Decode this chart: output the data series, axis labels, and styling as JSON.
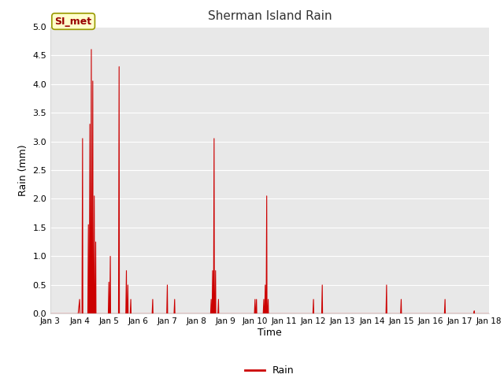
{
  "title": "Sherman Island Rain",
  "xlabel": "Time",
  "ylabel": "Rain (mm)",
  "legend_label": "Rain",
  "line_color": "#cc0000",
  "ylim": [
    0,
    5.0
  ],
  "yticks": [
    0.0,
    0.5,
    1.0,
    1.5,
    2.0,
    2.5,
    3.0,
    3.5,
    4.0,
    4.5,
    5.0
  ],
  "fig_bg_color": "#ffffff",
  "plot_bg_color": "#e8e8e8",
  "annotation_text": "SI_met",
  "annotation_bg": "#ffffcc",
  "annotation_border": "#999900",
  "annotation_text_color": "#990000",
  "start_day": 3,
  "end_day": 18,
  "data_points": [
    [
      3.0,
      0.0
    ],
    [
      3.95,
      0.0
    ],
    [
      4.0,
      0.25
    ],
    [
      4.01,
      0.0
    ],
    [
      4.08,
      0.0
    ],
    [
      4.1,
      3.05
    ],
    [
      4.11,
      0.0
    ],
    [
      4.28,
      0.0
    ],
    [
      4.3,
      1.55
    ],
    [
      4.31,
      0.0
    ],
    [
      4.33,
      0.0
    ],
    [
      4.35,
      3.3
    ],
    [
      4.36,
      0.0
    ],
    [
      4.38,
      0.0
    ],
    [
      4.4,
      4.6
    ],
    [
      4.41,
      0.0
    ],
    [
      4.43,
      0.0
    ],
    [
      4.45,
      4.05
    ],
    [
      4.46,
      0.0
    ],
    [
      4.48,
      0.0
    ],
    [
      4.5,
      2.05
    ],
    [
      4.51,
      0.0
    ],
    [
      4.53,
      0.0
    ],
    [
      4.55,
      1.25
    ],
    [
      4.56,
      0.0
    ],
    [
      4.75,
      0.0
    ],
    [
      4.98,
      0.0
    ],
    [
      5.0,
      0.55
    ],
    [
      5.01,
      0.0
    ],
    [
      5.03,
      0.0
    ],
    [
      5.05,
      1.0
    ],
    [
      5.06,
      0.0
    ],
    [
      5.33,
      0.0
    ],
    [
      5.35,
      4.3
    ],
    [
      5.36,
      0.0
    ],
    [
      5.5,
      0.0
    ],
    [
      5.58,
      0.0
    ],
    [
      5.6,
      0.75
    ],
    [
      5.61,
      0.0
    ],
    [
      5.63,
      0.0
    ],
    [
      5.65,
      0.5
    ],
    [
      5.66,
      0.0
    ],
    [
      5.73,
      0.0
    ],
    [
      5.75,
      0.25
    ],
    [
      5.76,
      0.0
    ],
    [
      6.0,
      0.0
    ],
    [
      6.48,
      0.0
    ],
    [
      6.5,
      0.25
    ],
    [
      6.51,
      0.0
    ],
    [
      6.8,
      0.0
    ],
    [
      6.98,
      0.0
    ],
    [
      7.0,
      0.5
    ],
    [
      7.01,
      0.0
    ],
    [
      7.23,
      0.0
    ],
    [
      7.25,
      0.25
    ],
    [
      7.26,
      0.0
    ],
    [
      7.5,
      0.0
    ],
    [
      8.0,
      0.0
    ],
    [
      8.48,
      0.0
    ],
    [
      8.5,
      0.25
    ],
    [
      8.51,
      0.0
    ],
    [
      8.53,
      0.0
    ],
    [
      8.55,
      0.75
    ],
    [
      8.56,
      0.0
    ],
    [
      8.58,
      0.0
    ],
    [
      8.6,
      3.05
    ],
    [
      8.61,
      0.0
    ],
    [
      8.63,
      0.0
    ],
    [
      8.65,
      0.75
    ],
    [
      8.66,
      0.0
    ],
    [
      8.7,
      0.0
    ],
    [
      8.73,
      0.0
    ],
    [
      8.75,
      0.25
    ],
    [
      8.76,
      0.0
    ],
    [
      9.0,
      0.0
    ],
    [
      9.5,
      0.0
    ],
    [
      9.98,
      0.0
    ],
    [
      10.0,
      0.25
    ],
    [
      10.01,
      0.0
    ],
    [
      10.03,
      0.0
    ],
    [
      10.05,
      0.25
    ],
    [
      10.06,
      0.0
    ],
    [
      10.28,
      0.0
    ],
    [
      10.3,
      0.25
    ],
    [
      10.31,
      0.0
    ],
    [
      10.33,
      0.0
    ],
    [
      10.35,
      0.5
    ],
    [
      10.36,
      0.0
    ],
    [
      10.38,
      0.0
    ],
    [
      10.4,
      2.05
    ],
    [
      10.41,
      0.0
    ],
    [
      10.43,
      0.0
    ],
    [
      10.45,
      0.25
    ],
    [
      10.46,
      0.0
    ],
    [
      11.0,
      0.0
    ],
    [
      11.5,
      0.0
    ],
    [
      11.98,
      0.0
    ],
    [
      12.0,
      0.25
    ],
    [
      12.01,
      0.0
    ],
    [
      12.28,
      0.0
    ],
    [
      12.3,
      0.5
    ],
    [
      12.31,
      0.0
    ],
    [
      13.0,
      0.0
    ],
    [
      13.5,
      0.0
    ],
    [
      14.0,
      0.0
    ],
    [
      14.48,
      0.0
    ],
    [
      14.5,
      0.5
    ],
    [
      14.51,
      0.0
    ],
    [
      14.98,
      0.0
    ],
    [
      15.0,
      0.25
    ],
    [
      15.01,
      0.0
    ],
    [
      15.5,
      0.0
    ],
    [
      16.0,
      0.0
    ],
    [
      16.48,
      0.0
    ],
    [
      16.5,
      0.25
    ],
    [
      16.51,
      0.0
    ],
    [
      17.0,
      0.0
    ],
    [
      17.48,
      0.0
    ],
    [
      17.5,
      0.05
    ],
    [
      17.51,
      0.0
    ],
    [
      18.0,
      0.0
    ]
  ]
}
